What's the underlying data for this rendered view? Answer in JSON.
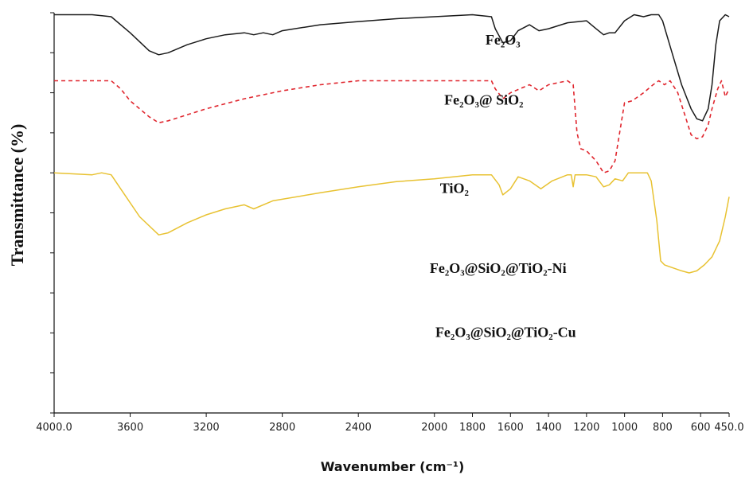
{
  "chart_data": {
    "type": "line",
    "xlabel": "Wavenumber (cm⁻¹)",
    "ylabel": "Transmittance (%)",
    "xlim": [
      4000,
      450
    ],
    "x_reversed": true,
    "x_ticks": [
      {
        "value": 4000,
        "label": "4000.0"
      },
      {
        "value": 3600,
        "label": "3600"
      },
      {
        "value": 3200,
        "label": "3200"
      },
      {
        "value": 2800,
        "label": "2800"
      },
      {
        "value": 2400,
        "label": "2400"
      },
      {
        "value": 2000,
        "label": "2000"
      },
      {
        "value": 1800,
        "label": "1800"
      },
      {
        "value": 1600,
        "label": "1600"
      },
      {
        "value": 1400,
        "label": "1400"
      },
      {
        "value": 1200,
        "label": "1200"
      },
      {
        "value": 1000,
        "label": "1000"
      },
      {
        "value": 800,
        "label": "800"
      },
      {
        "value": 600,
        "label": "600"
      },
      {
        "value": 450,
        "label": "450.0"
      }
    ],
    "ylim": [
      0,
      10
    ],
    "y_tick_count": 11,
    "y_tick_labels_shown": false,
    "grid": false,
    "legend": "none",
    "annotations": [
      {
        "text": "Fe₂O₃",
        "x": 1640,
        "y": 9.2
      },
      {
        "text": "Fe₂O₃@ SiO₂",
        "x": 1740,
        "y": 7.7
      },
      {
        "text": "TiO₂",
        "x": 1895,
        "y": 5.5
      },
      {
        "text": "Fe₂O₃@SiO₂@TiO₂-Ni",
        "x": 1665,
        "y": 3.5
      },
      {
        "text": "Fe₂O₃@SiO₂@TiO₂-Cu",
        "x": 1625,
        "y": 1.9
      }
    ],
    "series": [
      {
        "color": "#1a1a1a",
        "dash": "solid",
        "points": [
          [
            4000,
            9.95
          ],
          [
            3800,
            9.95
          ],
          [
            3700,
            9.9
          ],
          [
            3600,
            9.5
          ],
          [
            3500,
            9.05
          ],
          [
            3450,
            8.95
          ],
          [
            3400,
            9.0
          ],
          [
            3300,
            9.2
          ],
          [
            3200,
            9.35
          ],
          [
            3100,
            9.45
          ],
          [
            3000,
            9.5
          ],
          [
            2950,
            9.45
          ],
          [
            2900,
            9.5
          ],
          [
            2850,
            9.45
          ],
          [
            2800,
            9.55
          ],
          [
            2600,
            9.7
          ],
          [
            2400,
            9.78
          ],
          [
            2200,
            9.85
          ],
          [
            2000,
            9.9
          ],
          [
            1800,
            9.95
          ],
          [
            1700,
            9.9
          ],
          [
            1680,
            9.6
          ],
          [
            1640,
            9.25
          ],
          [
            1600,
            9.3
          ],
          [
            1560,
            9.55
          ],
          [
            1500,
            9.7
          ],
          [
            1450,
            9.55
          ],
          [
            1400,
            9.6
          ],
          [
            1300,
            9.75
          ],
          [
            1200,
            9.8
          ],
          [
            1150,
            9.6
          ],
          [
            1110,
            9.45
          ],
          [
            1080,
            9.5
          ],
          [
            1050,
            9.5
          ],
          [
            1000,
            9.8
          ],
          [
            950,
            9.95
          ],
          [
            900,
            9.9
          ],
          [
            860,
            9.95
          ],
          [
            820,
            9.95
          ],
          [
            800,
            9.8
          ],
          [
            750,
            9.0
          ],
          [
            700,
            8.2
          ],
          [
            650,
            7.6
          ],
          [
            620,
            7.35
          ],
          [
            590,
            7.3
          ],
          [
            560,
            7.6
          ],
          [
            540,
            8.2
          ],
          [
            520,
            9.2
          ],
          [
            500,
            9.8
          ],
          [
            470,
            9.95
          ],
          [
            450,
            9.9
          ]
        ]
      },
      {
        "color": "#e0262e",
        "dash": "dashed",
        "points": [
          [
            4000,
            8.3
          ],
          [
            3700,
            8.3
          ],
          [
            3650,
            8.1
          ],
          [
            3600,
            7.8
          ],
          [
            3500,
            7.4
          ],
          [
            3450,
            7.25
          ],
          [
            3400,
            7.3
          ],
          [
            3200,
            7.6
          ],
          [
            3000,
            7.85
          ],
          [
            2800,
            8.05
          ],
          [
            2600,
            8.2
          ],
          [
            2400,
            8.3
          ],
          [
            2000,
            8.3
          ],
          [
            1800,
            8.3
          ],
          [
            1700,
            8.3
          ],
          [
            1680,
            8.1
          ],
          [
            1640,
            7.85
          ],
          [
            1600,
            8.0
          ],
          [
            1500,
            8.2
          ],
          [
            1450,
            8.05
          ],
          [
            1400,
            8.2
          ],
          [
            1300,
            8.3
          ],
          [
            1270,
            8.2
          ],
          [
            1250,
            7.0
          ],
          [
            1230,
            6.6
          ],
          [
            1200,
            6.55
          ],
          [
            1150,
            6.3
          ],
          [
            1110,
            6.0
          ],
          [
            1080,
            6.05
          ],
          [
            1050,
            6.3
          ],
          [
            1000,
            7.75
          ],
          [
            960,
            7.8
          ],
          [
            900,
            8.0
          ],
          [
            850,
            8.2
          ],
          [
            820,
            8.3
          ],
          [
            790,
            8.2
          ],
          [
            760,
            8.3
          ],
          [
            720,
            8.0
          ],
          [
            680,
            7.4
          ],
          [
            650,
            6.95
          ],
          [
            620,
            6.85
          ],
          [
            590,
            6.9
          ],
          [
            560,
            7.2
          ],
          [
            540,
            7.6
          ],
          [
            510,
            8.1
          ],
          [
            490,
            8.3
          ],
          [
            470,
            7.9
          ],
          [
            450,
            8.1
          ]
        ]
      },
      {
        "color": "#e8c232",
        "dash": "solid",
        "points": [
          [
            4000,
            6.0
          ],
          [
            3800,
            5.95
          ],
          [
            3750,
            6.0
          ],
          [
            3700,
            5.95
          ],
          [
            3650,
            5.6
          ],
          [
            3550,
            4.9
          ],
          [
            3450,
            4.45
          ],
          [
            3400,
            4.5
          ],
          [
            3300,
            4.75
          ],
          [
            3200,
            4.95
          ],
          [
            3100,
            5.1
          ],
          [
            3000,
            5.2
          ],
          [
            2950,
            5.1
          ],
          [
            2850,
            5.3
          ],
          [
            2600,
            5.5
          ],
          [
            2400,
            5.65
          ],
          [
            2200,
            5.78
          ],
          [
            2000,
            5.85
          ],
          [
            1800,
            5.95
          ],
          [
            1700,
            5.95
          ],
          [
            1660,
            5.7
          ],
          [
            1640,
            5.45
          ],
          [
            1600,
            5.6
          ],
          [
            1560,
            5.9
          ],
          [
            1500,
            5.8
          ],
          [
            1440,
            5.6
          ],
          [
            1380,
            5.8
          ],
          [
            1300,
            5.95
          ],
          [
            1280,
            5.95
          ],
          [
            1270,
            5.65
          ],
          [
            1260,
            5.95
          ],
          [
            1200,
            5.95
          ],
          [
            1150,
            5.9
          ],
          [
            1110,
            5.65
          ],
          [
            1080,
            5.7
          ],
          [
            1050,
            5.85
          ],
          [
            1010,
            5.8
          ],
          [
            980,
            6.0
          ],
          [
            900,
            6.0
          ],
          [
            880,
            6.0
          ],
          [
            860,
            5.8
          ],
          [
            830,
            4.8
          ],
          [
            810,
            3.8
          ],
          [
            790,
            3.7
          ],
          [
            760,
            3.65
          ],
          [
            700,
            3.55
          ],
          [
            660,
            3.5
          ],
          [
            620,
            3.55
          ],
          [
            580,
            3.7
          ],
          [
            540,
            3.9
          ],
          [
            500,
            4.3
          ],
          [
            470,
            4.9
          ],
          [
            450,
            5.4
          ]
        ]
      }
    ]
  }
}
